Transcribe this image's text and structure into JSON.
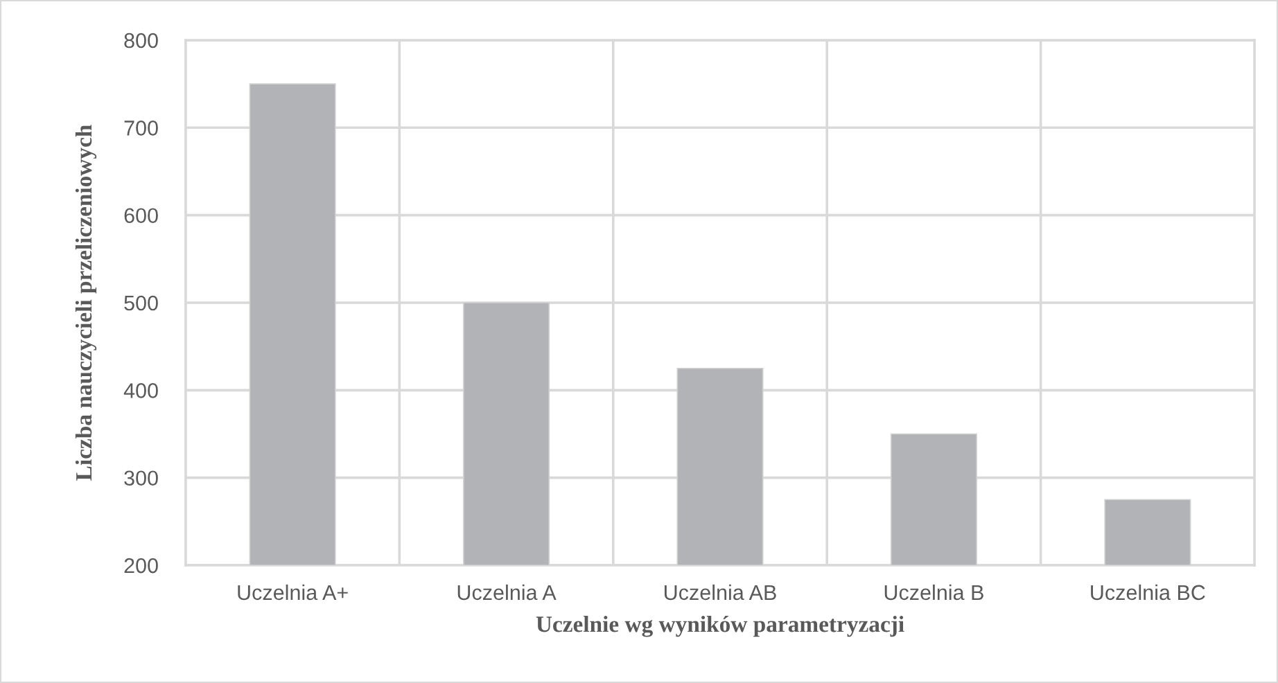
{
  "chart_data": {
    "type": "bar",
    "categories": [
      "Uczelnia A+",
      "Uczelnia A",
      "Uczelnia AB",
      "Uczelnia B",
      "Uczelnia BC"
    ],
    "values": [
      750,
      500,
      425,
      350,
      275
    ],
    "color": "#b2b3b6",
    "xlabel": "Uczelnie wg wyników parametryzacji",
    "ylabel": "Liczba nauczycieli przeliczeniowych",
    "ylim": [
      200,
      800
    ],
    "yticks": [
      200,
      300,
      400,
      500,
      600,
      700,
      800
    ],
    "grid": true
  }
}
